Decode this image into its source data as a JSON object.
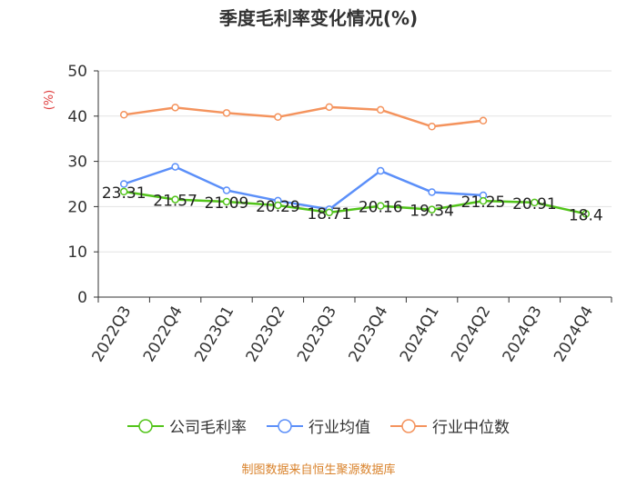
{
  "chart_data": {
    "type": "line",
    "title": "季度毛利率变化情况(%)",
    "ylabel": "(%)",
    "xlabel": "",
    "ylim": [
      0,
      50
    ],
    "yticks": [
      0,
      10,
      20,
      30,
      40,
      50
    ],
    "categories": [
      "2022Q3",
      "2022Q4",
      "2023Q1",
      "2023Q2",
      "2023Q3",
      "2023Q4",
      "2024Q1",
      "2024Q2",
      "2024Q3",
      "2024Q4"
    ],
    "series": [
      {
        "name": "公司毛利率",
        "color": "#52c41a",
        "values": [
          23.31,
          21.57,
          21.09,
          20.29,
          18.71,
          20.16,
          19.34,
          21.25,
          20.91,
          18.4
        ],
        "labels": [
          "23.31",
          "21.57",
          "21.09",
          "20.29",
          "18.71",
          "20.16",
          "19.34",
          "21.25",
          "20.91",
          "18.4"
        ]
      },
      {
        "name": "行业均值",
        "color": "#5b8ff9",
        "values": [
          25.0,
          28.8,
          23.6,
          21.3,
          19.4,
          27.9,
          23.2,
          22.5,
          null,
          null
        ]
      },
      {
        "name": "行业中位数",
        "color": "#f4935d",
        "values": [
          40.3,
          41.9,
          40.7,
          39.8,
          42.0,
          41.4,
          37.7,
          39.0,
          null,
          null
        ]
      }
    ],
    "grid": true,
    "legend_position": "bottom"
  },
  "source": "制图数据来自恒生聚源数据库"
}
